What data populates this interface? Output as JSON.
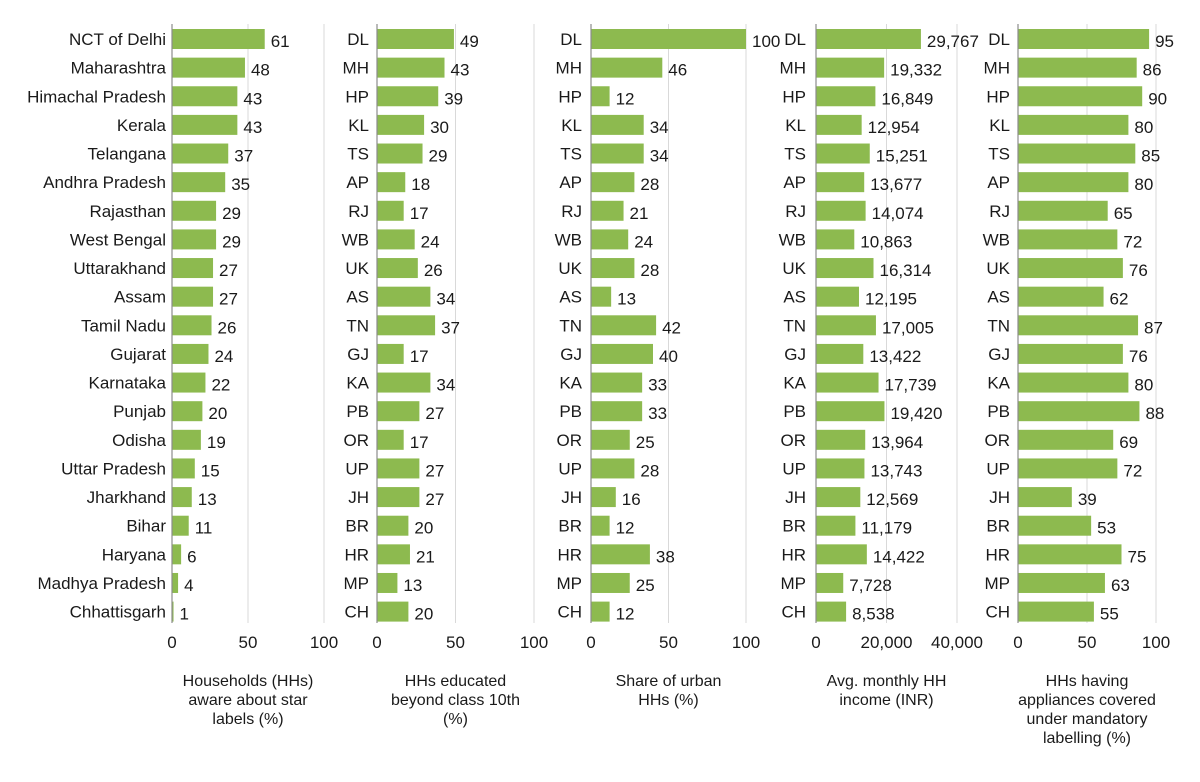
{
  "colors": {
    "bar": "#8dba4f",
    "axis": "#8c8c8c",
    "grid": "#d9d9d9",
    "text": "#1a1a1a"
  },
  "chart_data": [
    {
      "type": "bar",
      "orientation": "horizontal",
      "title": "Households (HHs) aware about star labels (%)",
      "xlabel": "Households (HHs) aware about star labels (%)",
      "xlabel_lines": [
        "Households (HHs)",
        "aware about star",
        "labels (%)"
      ],
      "categories": [
        "NCT of Delhi",
        "Maharashtra",
        "Himachal Pradesh",
        "Kerala",
        "Telangana",
        "Andhra Pradesh",
        "Rajasthan",
        "West Bengal",
        "Uttarakhand",
        "Assam",
        "Tamil Nadu",
        "Gujarat",
        "Karnataka",
        "Punjab",
        "Odisha",
        "Uttar Pradesh",
        "Jharkhand",
        "Bihar",
        "Haryana",
        "Madhya Pradesh",
        "Chhattisgarh"
      ],
      "values": [
        61,
        48,
        43,
        43,
        37,
        35,
        29,
        29,
        27,
        27,
        26,
        24,
        22,
        20,
        19,
        15,
        13,
        11,
        6,
        4,
        1
      ],
      "value_labels": [
        "61",
        "48",
        "43",
        "43",
        "37",
        "35",
        "29",
        "29",
        "27",
        "27",
        "26",
        "24",
        "22",
        "20",
        "19",
        "15",
        "13",
        "11",
        "6",
        "4",
        "1"
      ],
      "xlim": [
        0,
        100
      ],
      "ticks": [
        0,
        50,
        100
      ],
      "tick_labels": [
        "0",
        "50",
        "100"
      ],
      "grid": true
    },
    {
      "type": "bar",
      "orientation": "horizontal",
      "title": "HHs educated beyond class 10th (%)",
      "xlabel": "HHs educated beyond class 10th (%)",
      "xlabel_lines": [
        "HHs educated",
        "beyond class 10th",
        "(%)"
      ],
      "categories": [
        "DL",
        "MH",
        "HP",
        "KL",
        "TS",
        "AP",
        "RJ",
        "WB",
        "UK",
        "AS",
        "TN",
        "GJ",
        "KA",
        "PB",
        "OR",
        "UP",
        "JH",
        "BR",
        "HR",
        "MP",
        "CH"
      ],
      "values": [
        49,
        43,
        39,
        30,
        29,
        18,
        17,
        24,
        26,
        34,
        37,
        17,
        34,
        27,
        17,
        27,
        27,
        20,
        21,
        13,
        20
      ],
      "value_labels": [
        "49",
        "43",
        "39",
        "30",
        "29",
        "18",
        "17",
        "24",
        "26",
        "34",
        "37",
        "17",
        "34",
        "27",
        "17",
        "27",
        "27",
        "20",
        "21",
        "13",
        "20"
      ],
      "xlim": [
        0,
        100
      ],
      "ticks": [
        0,
        50,
        100
      ],
      "tick_labels": [
        "0",
        "50",
        "100"
      ],
      "grid": true
    },
    {
      "type": "bar",
      "orientation": "horizontal",
      "title": "Share of urban HHs (%)",
      "xlabel": "Share of urban HHs (%)",
      "xlabel_lines": [
        "Share of urban",
        "HHs (%)"
      ],
      "categories": [
        "DL",
        "MH",
        "HP",
        "KL",
        "TS",
        "AP",
        "RJ",
        "WB",
        "UK",
        "AS",
        "TN",
        "GJ",
        "KA",
        "PB",
        "OR",
        "UP",
        "JH",
        "BR",
        "HR",
        "MP",
        "CH"
      ],
      "values": [
        100,
        46,
        12,
        34,
        34,
        28,
        21,
        24,
        28,
        13,
        42,
        40,
        33,
        33,
        25,
        28,
        16,
        12,
        38,
        25,
        12
      ],
      "value_labels": [
        "100",
        "46",
        "12",
        "34",
        "34",
        "28",
        "21",
        "24",
        "28",
        "13",
        "42",
        "40",
        "33",
        "33",
        "25",
        "28",
        "16",
        "12",
        "38",
        "25",
        "12"
      ],
      "xlim": [
        0,
        100
      ],
      "ticks": [
        0,
        50,
        100
      ],
      "tick_labels": [
        "0",
        "50",
        "100"
      ],
      "grid": true
    },
    {
      "type": "bar",
      "orientation": "horizontal",
      "title": "Avg. monthly HH income (INR)",
      "xlabel": "Avg. monthly HH income (INR)",
      "xlabel_lines": [
        "Avg. monthly HH",
        "income (INR)"
      ],
      "categories": [
        "DL",
        "MH",
        "HP",
        "KL",
        "TS",
        "AP",
        "RJ",
        "WB",
        "UK",
        "AS",
        "TN",
        "GJ",
        "KA",
        "PB",
        "OR",
        "UP",
        "JH",
        "BR",
        "HR",
        "MP",
        "CH"
      ],
      "values": [
        29767,
        19332,
        16849,
        12954,
        15251,
        13677,
        14074,
        10863,
        16314,
        12195,
        17005,
        13422,
        17739,
        19420,
        13964,
        13743,
        12569,
        11179,
        14422,
        7728,
        8538
      ],
      "value_labels": [
        "29,767",
        "19,332",
        "16,849",
        "12,954",
        "15,251",
        "13,677",
        "14,074",
        "10,863",
        "16,314",
        "12,195",
        "17,005",
        "13,422",
        "17,739",
        "19,420",
        "13,964",
        "13,743",
        "12,569",
        "11,179",
        "14,422",
        "7,728",
        "8,538"
      ],
      "xlim": [
        0,
        40000
      ],
      "ticks": [
        0,
        20000,
        40000
      ],
      "tick_labels": [
        "0",
        "20,000",
        "40,000"
      ],
      "grid": true
    },
    {
      "type": "bar",
      "orientation": "horizontal",
      "title": "HHs having appliances covered under mandatory labelling (%)",
      "xlabel": "HHs having appliances covered under mandatory labelling (%)",
      "xlabel_lines": [
        "HHs having",
        "appliances covered",
        "under mandatory",
        "labelling  (%)"
      ],
      "categories": [
        "DL",
        "MH",
        "HP",
        "KL",
        "TS",
        "AP",
        "RJ",
        "WB",
        "UK",
        "AS",
        "TN",
        "GJ",
        "KA",
        "PB",
        "OR",
        "UP",
        "JH",
        "BR",
        "HR",
        "MP",
        "CH"
      ],
      "values": [
        95,
        86,
        90,
        80,
        85,
        80,
        65,
        72,
        76,
        62,
        87,
        76,
        80,
        88,
        69,
        72,
        39,
        53,
        75,
        63,
        55
      ],
      "value_labels": [
        "95",
        "86",
        "90",
        "80",
        "85",
        "80",
        "65",
        "72",
        "76",
        "62",
        "87",
        "76",
        "80",
        "88",
        "69",
        "72",
        "39",
        "53",
        "75",
        "63",
        "55"
      ],
      "xlim": [
        0,
        100
      ],
      "ticks": [
        0,
        50,
        100
      ],
      "tick_labels": [
        "0",
        "50",
        "100"
      ],
      "grid": true
    }
  ]
}
